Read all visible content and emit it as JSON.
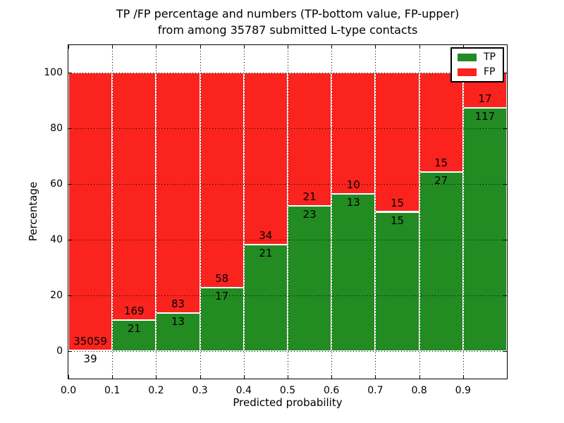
{
  "figure": {
    "title_line1": "TP /FP percentage and numbers (TP-bottom value, FP-upper)",
    "title_line2": "from among 35787 submitted L-type contacts"
  },
  "chart_data": {
    "type": "bar",
    "stacked": true,
    "normalized_to": "percent of contacts per bin",
    "title": "TP /FP percentage and numbers (TP-bottom value, FP-upper) from among 35787 submitted L-type contacts",
    "xlabel": "Predicted probability",
    "ylabel": "Percentage",
    "xlim": [
      0.0,
      1.0
    ],
    "ylim": [
      -10,
      110
    ],
    "bin_edges": [
      0.0,
      0.1,
      0.2,
      0.3,
      0.4,
      0.5,
      0.6,
      0.7,
      0.8,
      0.9,
      1.0
    ],
    "xtick_labels": [
      "0.0",
      "0.1",
      "0.2",
      "0.3",
      "0.4",
      "0.5",
      "0.6",
      "0.7",
      "0.8",
      "0.9"
    ],
    "ytick_values": [
      0,
      20,
      40,
      60,
      80,
      100
    ],
    "grid_style": "dotted",
    "grid_color": "#000000",
    "legend_position": "upper-right",
    "series": [
      {
        "name": "TP",
        "color": "#228b22",
        "counts": [
          39,
          21,
          13,
          17,
          21,
          23,
          13,
          15,
          27,
          117
        ]
      },
      {
        "name": "FP",
        "color": "#fa231e",
        "counts": [
          35059,
          169,
          83,
          58,
          34,
          21,
          10,
          15,
          15,
          17
        ]
      }
    ],
    "tp_percent_per_bin": [
      0.11,
      11.05,
      13.54,
      22.67,
      38.18,
      52.27,
      56.52,
      50.0,
      64.29,
      87.31
    ],
    "total_contacts": 35787
  },
  "colors": {
    "tp_green": "#228b22",
    "fp_red": "#fa231e",
    "axis": "#000000",
    "background": "#ffffff"
  }
}
